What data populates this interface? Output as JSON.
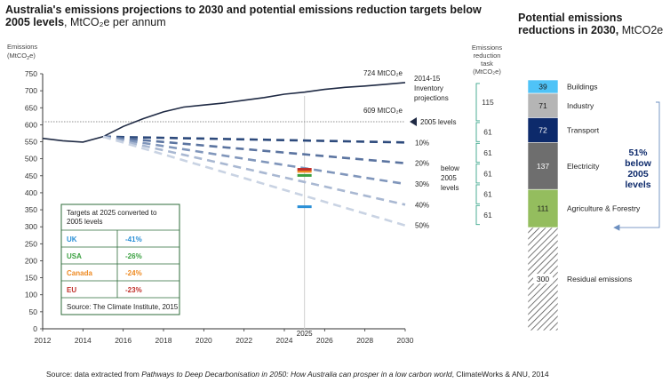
{
  "title_line1": "Australia's emissions projections to 2030 and potential emissions reduction targets below",
  "title_line2_bold": "2005 levels",
  "title_line2_rest": ", MtCO₂e per annum",
  "right_title_line1": "Potential emissions",
  "right_title_line2_bold": "reductions in 2030, ",
  "right_title_line2_rest": "MtCO2e",
  "source": "Source: data extracted from Pathways to Deep Decarbonisation in 2050: How Australia can prosper in a low carbon world, ClimateWorks & ANU, 2014",
  "source_prefix": "Source: data extracted from ",
  "source_italic": "Pathways to Deep Decarbonisation in 2050: How Australia can prosper in a low carbon world",
  "source_suffix": ", ClimateWorks & ANU, 2014",
  "colors": {
    "projection": "#1f2a44",
    "ref_line": "#8f8f8f",
    "series": [
      "#1f3564",
      "#2d4a7c",
      "#5b74a0",
      "#8096bb",
      "#a9b8d2",
      "#c9d3e3"
    ],
    "bracket": "#3aa58b",
    "arrow": "#6c8fc0",
    "uk": "#2a8fd6",
    "usa": "#3aa040",
    "canada": "#ee8a22",
    "eu": "#c0302a",
    "buildings": "#4fc3f7",
    "industry": "#b5b5b5",
    "transport": "#0d2a6b",
    "electricity": "#6e6e6e",
    "agriculture": "#94bd5e"
  },
  "chart_data": [
    {
      "type": "line",
      "xlabel": "",
      "ylabel": "Emissions (MtCO₂e)",
      "xlim": [
        2012,
        2030
      ],
      "ylim": [
        0,
        750
      ],
      "x_ticks": [
        2012,
        2014,
        2016,
        2018,
        2020,
        2022,
        2024,
        2026,
        2028,
        2030
      ],
      "y_ticks": [
        0,
        50,
        100,
        150,
        200,
        250,
        300,
        350,
        400,
        450,
        500,
        550,
        600,
        650,
        700,
        750
      ],
      "marker_year": "2025",
      "projection": {
        "name": "2014-15 Inventory projections",
        "x": [
          2012,
          2013,
          2014,
          2015,
          2016,
          2017,
          2018,
          2019,
          2020,
          2021,
          2022,
          2023,
          2024,
          2025,
          2026,
          2027,
          2028,
          2029,
          2030
        ],
        "y": [
          560,
          553,
          549,
          565,
          595,
          618,
          638,
          652,
          658,
          664,
          672,
          680,
          690,
          696,
          704,
          710,
          714,
          719,
          724
        ]
      },
      "reference_2005": {
        "label": "2005 levels",
        "value": 609,
        "value_label": "609 MtCO₂e"
      },
      "end_label": "724 MtCO₂e",
      "scenarios": [
        {
          "name": "10%",
          "start": [
            2015,
            565
          ],
          "end": [
            2030,
            548
          ]
        },
        {
          "name": "20%",
          "start": [
            2015,
            565
          ],
          "end": [
            2030,
            487
          ]
        },
        {
          "name": "30%",
          "start": [
            2015,
            565
          ],
          "end": [
            2030,
            426
          ]
        },
        {
          "name": "40%",
          "start": [
            2015,
            565
          ],
          "end": [
            2030,
            365
          ]
        },
        {
          "name": "50%",
          "start": [
            2015,
            565
          ],
          "end": [
            2030,
            304
          ]
        }
      ],
      "scenario_note": [
        "below",
        "2005",
        "levels"
      ],
      "targets_2025": [
        {
          "country": "UK",
          "value": "-41%",
          "mt": 359
        },
        {
          "country": "USA",
          "value": "-26%",
          "mt": 451
        },
        {
          "country": "Canada",
          "value": "-24%",
          "mt": 463
        },
        {
          "country": "EU",
          "value": "-23%",
          "mt": 469
        }
      ],
      "inset": {
        "title_line1": "Targets at 2025 converted to",
        "title_line2": "2005 levels",
        "source": "Source: The Climate Institute, 2015"
      },
      "task": {
        "header": [
          "Emissions",
          "reduction",
          "task",
          "(MtCO₂e)"
        ],
        "steps": [
          115,
          61,
          61,
          61,
          61,
          61
        ]
      }
    },
    {
      "type": "bar",
      "stacked": true,
      "unit": "MtCO2e",
      "categories": [
        "Buildings",
        "Industry",
        "Transport",
        "Electricity",
        "Agriculture & Forestry",
        "Residual emissions"
      ],
      "values": [
        39,
        71,
        72,
        137,
        111,
        300
      ],
      "annotation": [
        "51%",
        "below",
        "2005",
        "levels"
      ]
    }
  ]
}
